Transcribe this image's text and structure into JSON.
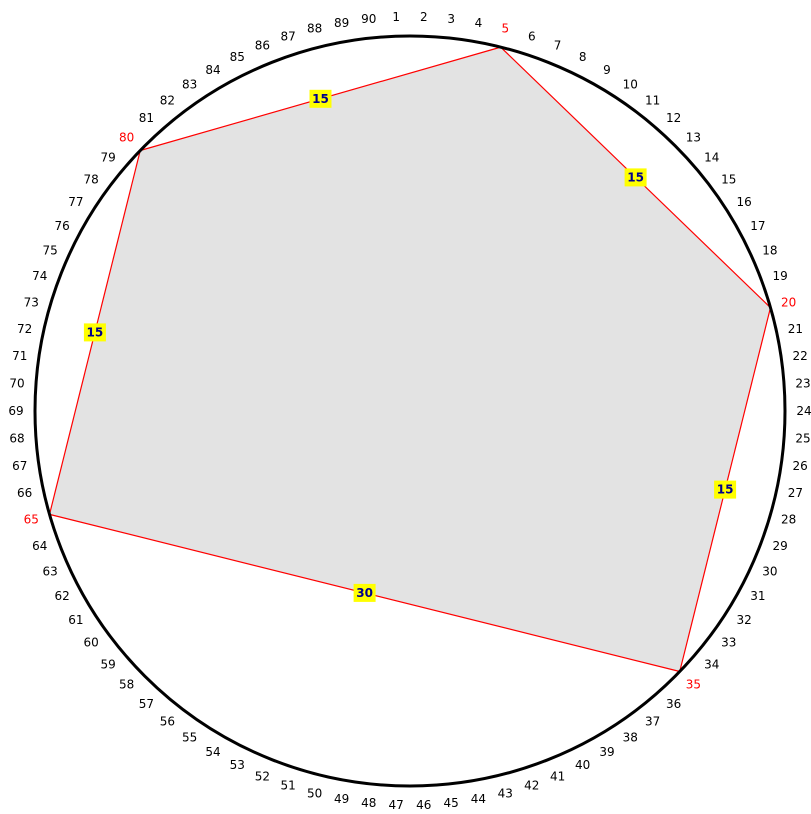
{
  "diagram": {
    "point_count": 90,
    "colors": {
      "circle": "#000000",
      "polygon_fill": "#e3e3e3",
      "polygon_edge": "#ff0000",
      "highlight_label": "#ff0000",
      "normal_label": "#000000",
      "edge_label_bg": "#ffff00",
      "edge_label_text": "#00008b"
    },
    "point_labels": [
      "1",
      "2",
      "3",
      "4",
      "5",
      "6",
      "7",
      "8",
      "9",
      "10",
      "11",
      "12",
      "13",
      "14",
      "15",
      "16",
      "17",
      "18",
      "19",
      "20",
      "21",
      "22",
      "23",
      "24",
      "25",
      "26",
      "27",
      "28",
      "29",
      "30",
      "31",
      "32",
      "33",
      "34",
      "35",
      "36",
      "37",
      "38",
      "39",
      "40",
      "41",
      "42",
      "43",
      "44",
      "45",
      "46",
      "47",
      "48",
      "49",
      "50",
      "51",
      "52",
      "53",
      "54",
      "55",
      "56",
      "57",
      "58",
      "59",
      "60",
      "61",
      "62",
      "63",
      "64",
      "65",
      "66",
      "67",
      "68",
      "69",
      "70",
      "71",
      "72",
      "73",
      "74",
      "75",
      "76",
      "77",
      "78",
      "79",
      "80",
      "81",
      "82",
      "83",
      "84",
      "85",
      "86",
      "87",
      "88",
      "89",
      "90"
    ],
    "polygon_vertices": [
      5,
      20,
      35,
      65,
      80
    ],
    "edges": [
      {
        "from": 5,
        "to": 20,
        "label": "15"
      },
      {
        "from": 20,
        "to": 35,
        "label": "15"
      },
      {
        "from": 35,
        "to": 65,
        "label": "30"
      },
      {
        "from": 65,
        "to": 80,
        "label": "15"
      },
      {
        "from": 80,
        "to": 5,
        "label": "15"
      }
    ]
  }
}
